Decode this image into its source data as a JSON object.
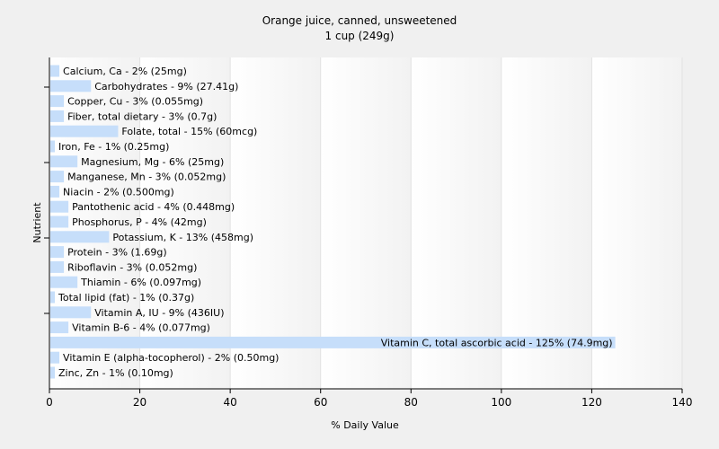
{
  "chart_data": {
    "type": "bar",
    "orientation": "horizontal",
    "title": "Orange juice, canned, unsweetened",
    "subtitle": "1 cup (249g)",
    "xlabel": "% Daily Value",
    "ylabel": "Nutrient",
    "xlim": [
      0,
      140
    ],
    "xticks": [
      0,
      20,
      40,
      60,
      80,
      100,
      120,
      140
    ],
    "grid": true,
    "bar_color": "#c6defa",
    "categories": [
      "Calcium, Ca",
      "Carbohydrates",
      "Copper, Cu",
      "Fiber, total dietary",
      "Folate, total",
      "Iron, Fe",
      "Magnesium, Mg",
      "Manganese, Mn",
      "Niacin",
      "Pantothenic acid",
      "Phosphorus, P",
      "Potassium, K",
      "Protein",
      "Riboflavin",
      "Thiamin",
      "Total lipid (fat)",
      "Vitamin A, IU",
      "Vitamin B-6",
      "Vitamin C, total ascorbic acid",
      "Vitamin E (alpha-tocopherol)",
      "Zinc, Zn"
    ],
    "values": [
      2,
      9,
      3,
      3,
      15,
      1,
      6,
      3,
      2,
      4,
      4,
      13,
      3,
      3,
      6,
      1,
      9,
      4,
      125,
      2,
      1
    ],
    "labels": [
      "Calcium, Ca - 2% (25mg)",
      "Carbohydrates - 9% (27.41g)",
      "Copper, Cu - 3% (0.055mg)",
      "Fiber, total dietary - 3% (0.7g)",
      "Folate, total - 15% (60mcg)",
      "Iron, Fe - 1% (0.25mg)",
      "Magnesium, Mg - 6% (25mg)",
      "Manganese, Mn - 3% (0.052mg)",
      "Niacin - 2% (0.500mg)",
      "Pantothenic acid - 4% (0.448mg)",
      "Phosphorus, P - 4% (42mg)",
      "Potassium, K - 13% (458mg)",
      "Protein - 3% (1.69g)",
      "Riboflavin - 3% (0.052mg)",
      "Thiamin - 6% (0.097mg)",
      "Total lipid (fat) - 1% (0.37g)",
      "Vitamin A, IU - 9% (436IU)",
      "Vitamin B-6 - 4% (0.077mg)",
      "Vitamin C, total ascorbic acid - 125% (74.9mg)",
      "Vitamin E (alpha-tocopherol) - 2% (0.50mg)",
      "Zinc, Zn - 1% (0.10mg)"
    ]
  }
}
